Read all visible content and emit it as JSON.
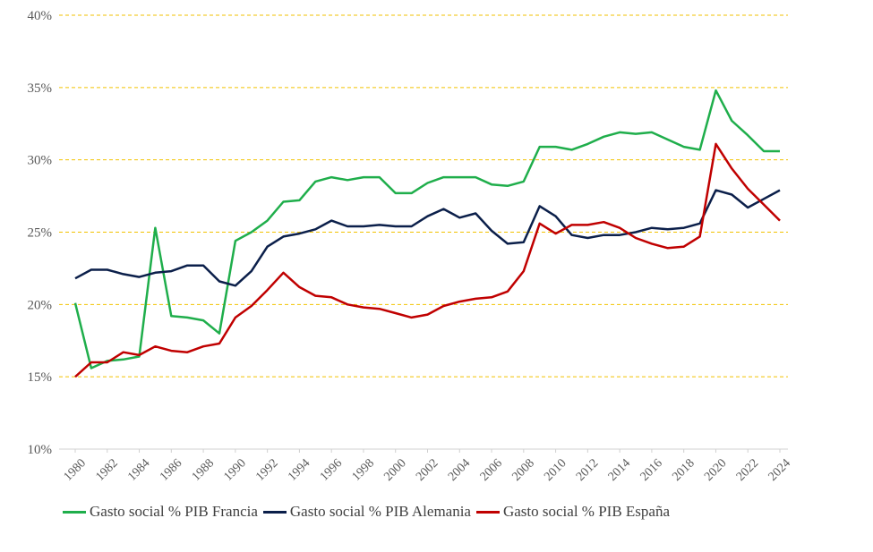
{
  "chart_data": {
    "type": "line",
    "title": "",
    "xlabel": "",
    "ylabel": "",
    "ylim": [
      10,
      40
    ],
    "yticks": [
      "10%",
      "15%",
      "20%",
      "25%",
      "30%",
      "35%",
      "40%"
    ],
    "yticks_values": [
      10,
      15,
      20,
      25,
      30,
      35,
      40
    ],
    "x": [
      1980,
      1981,
      1982,
      1983,
      1984,
      1985,
      1986,
      1987,
      1988,
      1989,
      1990,
      1991,
      1992,
      1993,
      1994,
      1995,
      1996,
      1997,
      1998,
      1999,
      2000,
      2001,
      2002,
      2003,
      2004,
      2005,
      2006,
      2007,
      2008,
      2009,
      2010,
      2011,
      2012,
      2013,
      2014,
      2015,
      2016,
      2017,
      2018,
      2019,
      2020,
      2021,
      2022,
      2023,
      2024
    ],
    "xtick_labels": [
      "1980",
      "1982",
      "1984",
      "1986",
      "1988",
      "1990",
      "1992",
      "1994",
      "1996",
      "1998",
      "2000",
      "2002",
      "2004",
      "2006",
      "2008",
      "2010",
      "2012",
      "2014",
      "2016",
      "2018",
      "2020",
      "2022",
      "2024"
    ],
    "grid": "horizontal dashed",
    "legend_position": "bottom",
    "series": [
      {
        "name": "Gasto social % PIB Francia",
        "color": "#1fae4b",
        "values": [
          20.1,
          15.6,
          16.1,
          16.2,
          16.4,
          25.3,
          19.2,
          19.1,
          18.9,
          18.0,
          24.4,
          25.0,
          25.8,
          27.1,
          27.2,
          28.5,
          28.8,
          28.6,
          28.8,
          28.8,
          27.7,
          27.7,
          28.4,
          28.8,
          28.8,
          28.8,
          28.3,
          28.2,
          28.5,
          30.9,
          30.9,
          30.7,
          31.1,
          31.6,
          31.9,
          31.8,
          31.9,
          31.4,
          30.9,
          30.7,
          34.8,
          32.7,
          31.7,
          30.6,
          30.6
        ]
      },
      {
        "name": "Gasto social % PIB Alemania",
        "color": "#0b1f4a",
        "values": [
          21.8,
          22.4,
          22.4,
          22.1,
          21.9,
          22.2,
          22.3,
          22.7,
          22.7,
          21.6,
          21.3,
          22.3,
          24.0,
          24.7,
          24.9,
          25.2,
          25.8,
          25.4,
          25.4,
          25.5,
          25.4,
          25.4,
          26.1,
          26.6,
          26.0,
          26.3,
          25.1,
          24.2,
          24.3,
          26.8,
          26.1,
          24.8,
          24.6,
          24.8,
          24.8,
          25.0,
          25.3,
          25.2,
          25.3,
          25.6,
          27.9,
          27.6,
          26.7,
          27.3,
          27.9
        ]
      },
      {
        "name": "Gasto social % PIB España",
        "color": "#c00000",
        "values": [
          15.0,
          16.0,
          16.0,
          16.7,
          16.5,
          17.1,
          16.8,
          16.7,
          17.1,
          17.3,
          19.1,
          19.9,
          21.0,
          22.2,
          21.2,
          20.6,
          20.5,
          20.0,
          19.8,
          19.7,
          19.4,
          19.1,
          19.3,
          19.9,
          20.2,
          20.4,
          20.5,
          20.9,
          22.3,
          25.6,
          24.9,
          25.5,
          25.5,
          25.7,
          25.3,
          24.6,
          24.2,
          23.9,
          24.0,
          24.7,
          31.1,
          29.4,
          28.0,
          26.9,
          25.8
        ]
      }
    ]
  }
}
